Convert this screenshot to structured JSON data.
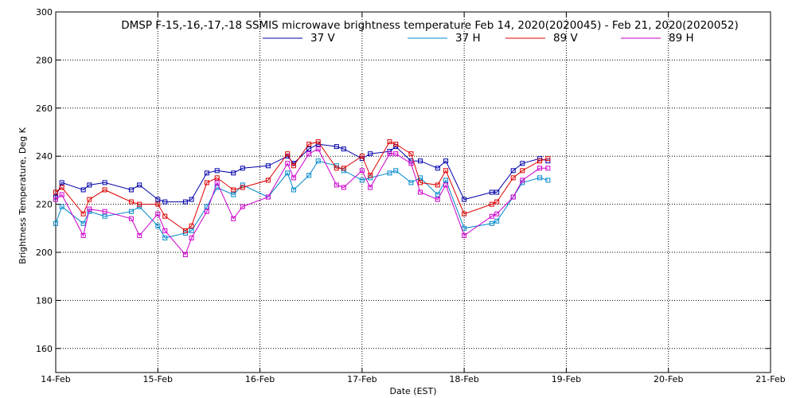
{
  "chart_data": {
    "type": "line",
    "title": "DMSP F-15,-16,-17,-18 SSMIS microwave brightness temperature Feb 14, 2020(2020045) - Feb 21, 2020(2020052)",
    "xlabel": "Date (EST)",
    "ylabel": "Brightness Temperature, Deg K",
    "xlim": [
      0,
      7
    ],
    "ylim": [
      150,
      300
    ],
    "x_ticks": [
      {
        "value": 0,
        "label": "14-Feb"
      },
      {
        "value": 1,
        "label": "15-Feb"
      },
      {
        "value": 2,
        "label": "16-Feb"
      },
      {
        "value": 3,
        "label": "17-Feb"
      },
      {
        "value": 4,
        "label": "18-Feb"
      },
      {
        "value": 5,
        "label": "19-Feb"
      },
      {
        "value": 6,
        "label": "20-Feb"
      },
      {
        "value": 7,
        "label": "21-Feb"
      }
    ],
    "y_ticks": [
      160,
      180,
      200,
      220,
      240,
      260,
      280,
      300
    ],
    "grid": true,
    "legend_position": "top-center",
    "series": [
      {
        "name": "37 V",
        "color": "#0000aa",
        "points": [
          [
            0.0,
            223
          ],
          [
            0.06,
            229
          ],
          [
            0.27,
            226
          ],
          [
            0.33,
            228
          ],
          [
            0.48,
            229
          ],
          [
            0.74,
            226
          ],
          [
            0.82,
            228
          ],
          [
            1.0,
            222
          ],
          [
            1.07,
            221
          ],
          [
            1.27,
            221
          ],
          [
            1.33,
            222
          ],
          [
            1.48,
            233
          ],
          [
            1.58,
            234
          ],
          [
            1.74,
            233
          ],
          [
            1.83,
            235
          ],
          [
            2.08,
            236
          ],
          [
            2.27,
            240
          ],
          [
            2.33,
            237
          ],
          [
            2.48,
            243
          ],
          [
            2.57,
            245
          ],
          [
            2.75,
            244
          ],
          [
            2.82,
            243
          ],
          [
            3.0,
            239
          ],
          [
            3.08,
            241
          ],
          [
            3.27,
            242
          ],
          [
            3.33,
            244
          ],
          [
            3.48,
            238
          ],
          [
            3.57,
            238
          ],
          [
            3.74,
            235
          ],
          [
            3.82,
            238
          ],
          [
            4.0,
            222
          ],
          [
            4.27,
            225
          ],
          [
            4.32,
            225
          ],
          [
            4.48,
            234
          ],
          [
            4.57,
            237
          ],
          [
            4.74,
            239
          ],
          [
            4.82,
            238
          ]
        ]
      },
      {
        "name": "37 H",
        "color": "#0088cc",
        "points": [
          [
            0.0,
            212
          ],
          [
            0.06,
            219
          ],
          [
            0.27,
            212
          ],
          [
            0.33,
            217
          ],
          [
            0.48,
            215
          ],
          [
            0.74,
            217
          ],
          [
            0.82,
            219
          ],
          [
            1.0,
            211
          ],
          [
            1.07,
            206
          ],
          [
            1.27,
            208
          ],
          [
            1.33,
            209
          ],
          [
            1.48,
            219
          ],
          [
            1.58,
            227
          ],
          [
            1.74,
            224
          ],
          [
            1.83,
            228
          ],
          [
            2.08,
            223
          ],
          [
            2.27,
            233
          ],
          [
            2.33,
            226
          ],
          [
            2.48,
            232
          ],
          [
            2.57,
            238
          ],
          [
            2.75,
            236
          ],
          [
            2.82,
            234
          ],
          [
            3.0,
            230
          ],
          [
            3.08,
            231
          ],
          [
            3.27,
            233
          ],
          [
            3.33,
            234
          ],
          [
            3.48,
            229
          ],
          [
            3.57,
            231
          ],
          [
            3.74,
            224
          ],
          [
            3.82,
            230
          ],
          [
            4.0,
            210
          ],
          [
            4.27,
            212
          ],
          [
            4.32,
            213
          ],
          [
            4.48,
            223
          ],
          [
            4.57,
            229
          ],
          [
            4.74,
            231
          ],
          [
            4.82,
            230
          ]
        ]
      },
      {
        "name": "89 V",
        "color": "#dd0000",
        "points": [
          [
            0.0,
            225
          ],
          [
            0.06,
            227
          ],
          [
            0.27,
            216
          ],
          [
            0.33,
            222
          ],
          [
            0.48,
            226
          ],
          [
            0.74,
            221
          ],
          [
            0.82,
            220
          ],
          [
            1.0,
            220
          ],
          [
            1.07,
            215
          ],
          [
            1.27,
            209
          ],
          [
            1.33,
            211
          ],
          [
            1.48,
            229
          ],
          [
            1.58,
            231
          ],
          [
            1.74,
            226
          ],
          [
            1.83,
            227
          ],
          [
            2.08,
            230
          ],
          [
            2.27,
            241
          ],
          [
            2.33,
            236
          ],
          [
            2.48,
            245
          ],
          [
            2.57,
            246
          ],
          [
            2.75,
            235
          ],
          [
            2.82,
            235
          ],
          [
            3.0,
            240
          ],
          [
            3.08,
            232
          ],
          [
            3.27,
            246
          ],
          [
            3.33,
            245
          ],
          [
            3.48,
            241
          ],
          [
            3.57,
            229
          ],
          [
            3.74,
            228
          ],
          [
            3.82,
            234
          ],
          [
            4.0,
            216
          ],
          [
            4.27,
            220
          ],
          [
            4.32,
            221
          ],
          [
            4.48,
            231
          ],
          [
            4.57,
            234
          ],
          [
            4.74,
            238
          ],
          [
            4.82,
            239
          ]
        ]
      },
      {
        "name": "89 H",
        "color": "#cc00cc",
        "points": [
          [
            0.0,
            222
          ],
          [
            0.06,
            224
          ],
          [
            0.27,
            207
          ],
          [
            0.33,
            218
          ],
          [
            0.48,
            217
          ],
          [
            0.74,
            214
          ],
          [
            0.82,
            207
          ],
          [
            1.0,
            216
          ],
          [
            1.07,
            209
          ],
          [
            1.27,
            199
          ],
          [
            1.33,
            206
          ],
          [
            1.48,
            217
          ],
          [
            1.58,
            229
          ],
          [
            1.74,
            214
          ],
          [
            1.83,
            219
          ],
          [
            2.08,
            223
          ],
          [
            2.27,
            237
          ],
          [
            2.33,
            231
          ],
          [
            2.48,
            241
          ],
          [
            2.57,
            243
          ],
          [
            2.75,
            228
          ],
          [
            2.82,
            227
          ],
          [
            3.0,
            234
          ],
          [
            3.08,
            227
          ],
          [
            3.27,
            241
          ],
          [
            3.33,
            241
          ],
          [
            3.48,
            237
          ],
          [
            3.57,
            225
          ],
          [
            3.74,
            222
          ],
          [
            3.82,
            228
          ],
          [
            4.0,
            207
          ],
          [
            4.27,
            215
          ],
          [
            4.32,
            216
          ],
          [
            4.48,
            223
          ],
          [
            4.57,
            230
          ],
          [
            4.74,
            235
          ],
          [
            4.82,
            235
          ]
        ]
      }
    ]
  }
}
